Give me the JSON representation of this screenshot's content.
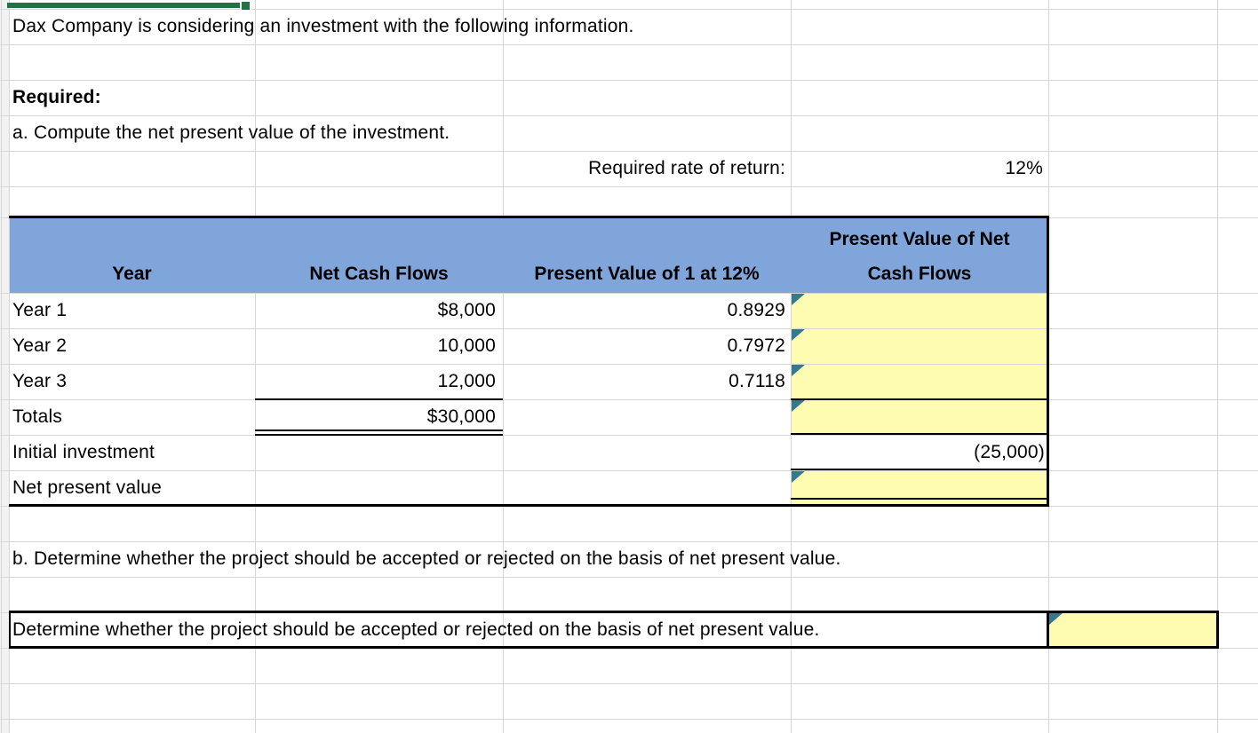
{
  "sheet": {
    "intro": "Dax Company is considering an investment with the following information.",
    "required_label": "Required:",
    "part_a": "a. Compute the net present value of the investment.",
    "rate_label": "Required rate of return:",
    "rate_value": "12%",
    "part_b": "b. Determine whether the project should be accepted or rejected on the basis of net present value.",
    "answer_prompt": "Determine whether the project should be accepted or rejected on the basis of net present value."
  },
  "table": {
    "headers": [
      "Year",
      "Net Cash Flows",
      "Present Value of 1 at 12%",
      "Present Value of Net Cash Flows"
    ],
    "rows": [
      {
        "label": "Year 1",
        "cash": "$8,000",
        "pv1": "0.8929"
      },
      {
        "label": "Year 2",
        "cash": "10,000",
        "pv1": "0.7972"
      },
      {
        "label": "Year 3",
        "cash": "12,000",
        "pv1": "0.7118"
      },
      {
        "label": "Totals",
        "cash": "$30,000"
      },
      {
        "label": "Initial investment",
        "pv_net": "(25,000)"
      },
      {
        "label": "Net present value"
      }
    ]
  },
  "icons": {
    "flag": "comment-flag-icon",
    "fill_handle": "selection-fill-handle"
  },
  "colors": {
    "header_fill": "#7FA5DB",
    "input_fill": "#FDFCB0",
    "flag": "#35798C",
    "selection": "#217346",
    "gridline": "#D6D6D6"
  }
}
